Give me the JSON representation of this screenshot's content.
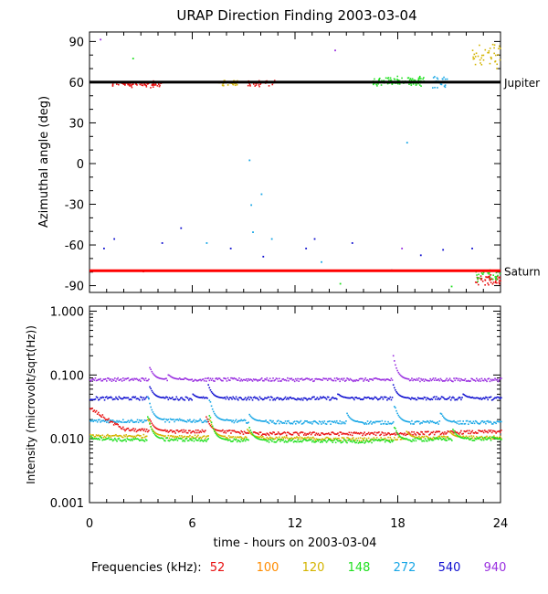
{
  "title": "URAP Direction Finding  2003-03-04",
  "colors": {
    "f52": "#e81010",
    "f100": "#ff8c00",
    "f120": "#d4b400",
    "f148": "#22e022",
    "f272": "#19a7e6",
    "f540": "#1010d0",
    "f940": "#9a30e0"
  },
  "chart_data": [
    {
      "type": "scatter",
      "ylabel": "Azimuthal angle (deg)",
      "xlim": [
        0,
        24
      ],
      "ylim": [
        -95,
        97
      ],
      "yticks": [
        90,
        60,
        30,
        0,
        -30,
        -60,
        -90
      ],
      "reference_lines": [
        {
          "label": "Jupiter",
          "y": 60,
          "color": "#000000"
        },
        {
          "label": "Saturn",
          "y": -79,
          "color": "#ff0000"
        }
      ],
      "clusters": [
        {
          "freq": "52",
          "x": [
            1.3,
            4.2
          ],
          "y": 59,
          "spread": 3,
          "n": 70
        },
        {
          "freq": "120",
          "x": [
            7.5,
            8.6
          ],
          "y": 60,
          "spread": 2.5,
          "n": 40
        },
        {
          "freq": "52",
          "x": [
            9.2,
            10.8
          ],
          "y": 60,
          "spread": 3,
          "n": 30
        },
        {
          "freq": "148",
          "x": [
            16.5,
            19.5
          ],
          "y": 61,
          "spread": 4,
          "n": 110
        },
        {
          "freq": "272",
          "x": [
            20,
            21
          ],
          "y": 61,
          "spread": 5,
          "n": 25
        },
        {
          "freq": "120",
          "x": [
            22.3,
            24
          ],
          "y": 80,
          "spread": 10,
          "n": 40
        },
        {
          "freq": "52",
          "x": [
            22.5,
            24
          ],
          "y": -85,
          "spread": 5,
          "n": 45
        },
        {
          "freq": "148",
          "x": [
            22.5,
            24
          ],
          "y": -82,
          "spread": 5,
          "n": 30
        }
      ],
      "points": [
        {
          "freq": "940",
          "x": 0.6,
          "y": 92
        },
        {
          "freq": "148",
          "x": 2.5,
          "y": 78
        },
        {
          "freq": "272",
          "x": 9.3,
          "y": 3
        },
        {
          "freq": "272",
          "x": 9.4,
          "y": -30
        },
        {
          "freq": "272",
          "x": 9.5,
          "y": -50
        },
        {
          "freq": "272",
          "x": 10.0,
          "y": -22
        },
        {
          "freq": "272",
          "x": 18.5,
          "y": 16
        },
        {
          "freq": "940",
          "x": 14.3,
          "y": 84
        },
        {
          "freq": "540",
          "x": 0.8,
          "y": -62
        },
        {
          "freq": "540",
          "x": 1.4,
          "y": -55
        },
        {
          "freq": "540",
          "x": 4.2,
          "y": -58
        },
        {
          "freq": "540",
          "x": 5.3,
          "y": -47
        },
        {
          "freq": "272",
          "x": 6.8,
          "y": -58
        },
        {
          "freq": "540",
          "x": 8.2,
          "y": -62
        },
        {
          "freq": "540",
          "x": 10.1,
          "y": -68
        },
        {
          "freq": "272",
          "x": 10.6,
          "y": -55
        },
        {
          "freq": "540",
          "x": 12.6,
          "y": -62
        },
        {
          "freq": "540",
          "x": 13.1,
          "y": -55
        },
        {
          "freq": "272",
          "x": 13.5,
          "y": -72
        },
        {
          "freq": "540",
          "x": 15.3,
          "y": -58
        },
        {
          "freq": "148",
          "x": 14.6,
          "y": -88
        },
        {
          "freq": "540",
          "x": 19.3,
          "y": -67
        },
        {
          "freq": "272",
          "x": 17.6,
          "y": -78
        },
        {
          "freq": "940",
          "x": 18.2,
          "y": -62
        },
        {
          "freq": "540",
          "x": 20.6,
          "y": -63
        },
        {
          "freq": "540",
          "x": 22.3,
          "y": -62
        },
        {
          "freq": "148",
          "x": 21.1,
          "y": -90
        },
        {
          "freq": "52",
          "x": 3.1,
          "y": -79
        }
      ]
    },
    {
      "type": "line",
      "xlabel": "time - hours on 2003-03-04",
      "ylabel": "Intensity (microvolt/sqrt(Hz))",
      "yscale": "log",
      "xlim": [
        0,
        24
      ],
      "ylim": [
        0.001,
        1.2
      ],
      "xticks": [
        0,
        6,
        12,
        18,
        24
      ],
      "yticks": [
        {
          "value": 1.0,
          "label": "1.000"
        },
        {
          "value": 0.1,
          "label": "0.100"
        },
        {
          "value": 0.01,
          "label": "0.010"
        },
        {
          "value": 0.001,
          "label": "0.001"
        }
      ],
      "series": [
        {
          "freq": "940",
          "base": [
            [
              0,
              0.085
            ],
            [
              24,
              0.084
            ]
          ],
          "spikes": [
            [
              3.5,
              0.13
            ],
            [
              4.6,
              0.1
            ],
            [
              17.7,
              0.2
            ]
          ]
        },
        {
          "freq": "540",
          "base": [
            [
              0,
              0.043
            ],
            [
              24,
              0.043
            ]
          ],
          "spikes": [
            [
              3.5,
              0.065
            ],
            [
              6.9,
              0.07
            ],
            [
              6,
              0.05
            ],
            [
              14.5,
              0.05
            ],
            [
              17.7,
              0.07
            ],
            [
              21.8,
              0.05
            ]
          ]
        },
        {
          "freq": "272",
          "base": [
            [
              0,
              0.019
            ],
            [
              3,
              0.019
            ],
            [
              3.3,
              0.0195
            ],
            [
              8,
              0.019
            ],
            [
              12,
              0.018
            ],
            [
              24,
              0.018
            ]
          ],
          "spikes": [
            [
              3.4,
              0.045
            ],
            [
              7.0,
              0.04
            ],
            [
              9.3,
              0.024
            ],
            [
              15,
              0.025
            ],
            [
              17.8,
              0.032
            ],
            [
              20.5,
              0.025
            ]
          ]
        },
        {
          "freq": "52",
          "base": [
            [
              0,
              0.03
            ],
            [
              1,
              0.02
            ],
            [
              2,
              0.014
            ],
            [
              4,
              0.013
            ],
            [
              8,
              0.013
            ],
            [
              10,
              0.012
            ],
            [
              12,
              0.012
            ],
            [
              18,
              0.012
            ],
            [
              24,
              0.013
            ]
          ],
          "spikes": [
            [
              3.5,
              0.02
            ],
            [
              6.8,
              0.022
            ]
          ]
        },
        {
          "freq": "120",
          "base": [
            [
              0,
              0.011
            ],
            [
              4,
              0.011
            ],
            [
              8,
              0.0105
            ],
            [
              16,
              0.0098
            ],
            [
              20,
              0.0105
            ],
            [
              24,
              0.0105
            ]
          ],
          "spikes": [
            [
              3.4,
              0.02
            ],
            [
              7.0,
              0.02
            ],
            [
              9.2,
              0.014
            ],
            [
              18.5,
              0.013
            ],
            [
              21,
              0.013
            ]
          ]
        },
        {
          "freq": "148",
          "base": [
            [
              0,
              0.0105
            ],
            [
              2,
              0.0095
            ],
            [
              4,
              0.0098
            ],
            [
              8,
              0.0095
            ],
            [
              16,
              0.0091
            ],
            [
              20,
              0.0098
            ],
            [
              24,
              0.0101
            ]
          ],
          "spikes": [
            [
              3.4,
              0.022
            ],
            [
              7.0,
              0.023
            ],
            [
              9.3,
              0.015
            ],
            [
              17.8,
              0.015
            ],
            [
              21.2,
              0.014
            ]
          ]
        }
      ]
    }
  ],
  "legend": {
    "label": "Frequencies (kHz):",
    "items": [
      {
        "freq": "52",
        "label": "52"
      },
      {
        "freq": "100",
        "label": "100"
      },
      {
        "freq": "120",
        "label": "120"
      },
      {
        "freq": "148",
        "label": "148"
      },
      {
        "freq": "272",
        "label": "272"
      },
      {
        "freq": "540",
        "label": "540"
      },
      {
        "freq": "940",
        "label": "940"
      }
    ]
  }
}
